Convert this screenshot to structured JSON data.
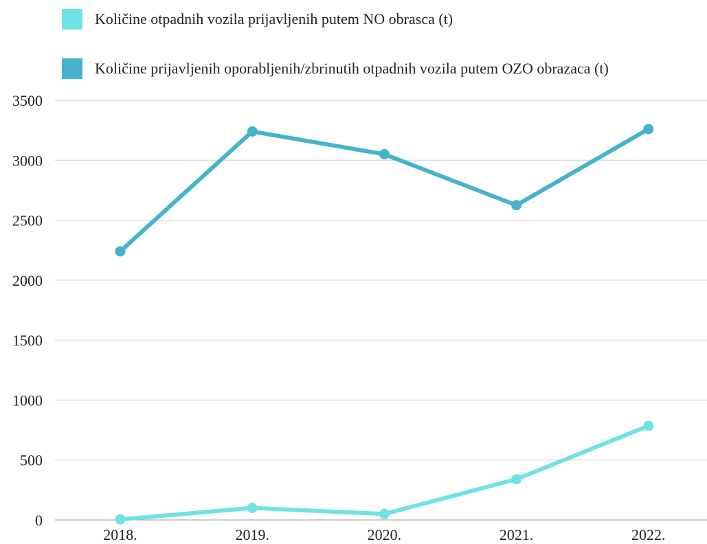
{
  "chart_data": {
    "type": "line",
    "categories": [
      "2018.",
      "2019.",
      "2020.",
      "2021.",
      "2022."
    ],
    "series": [
      {
        "name": "Količine otpadnih vozila prijavljenih putem NO obrasca (t)",
        "color": "#6fe3e3",
        "values": [
          5,
          100,
          50,
          340,
          785
        ]
      },
      {
        "name": "Količine prijavljenih oporabljenih/zbrinutih otpadnih vozila putem OZO obrazaca (t)",
        "color": "#45b3cc",
        "values": [
          2240,
          3240,
          3050,
          2625,
          3260
        ]
      }
    ],
    "yticks": [
      "0",
      "500",
      "1000",
      "1500",
      "2000",
      "2500",
      "3000",
      "3500"
    ],
    "ylim": [
      0,
      3500
    ],
    "grid": true,
    "legend_position": "top-left"
  }
}
